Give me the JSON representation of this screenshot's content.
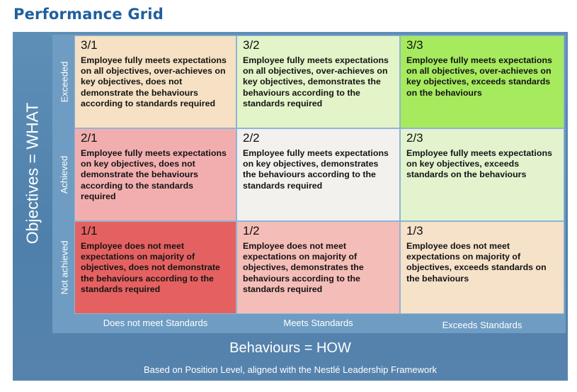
{
  "title": "Performance Grid",
  "y_axis_label": "Objectives = WHAT",
  "x_axis_label": "Behaviours = HOW",
  "footnote": "Based on Position Level, aligned with the Nestlé Leadership Framework",
  "row_labels": [
    "Exceeded",
    "Achieved",
    "Not achieved"
  ],
  "column_labels": [
    "Does not meet Standards",
    "Meets Standards",
    "Exceeds Standards"
  ],
  "cells": [
    {
      "code": "3/1",
      "text": "Employee fully meets expectations on all objectives, over-achieves on key objectives, does not demonstrate the behaviours according to standards required",
      "color": "#f6e1c4"
    },
    {
      "code": "3/2",
      "text": "Employee fully meets expectations on all objectives, over-achieves on key objectives, demonstrates the behaviours according to the standards required",
      "color": "#e3f4c8"
    },
    {
      "code": "3/3",
      "text": "Employee fully meets expectations on all objectives, over-achieves on key objectives, exceeds standards on the behaviours",
      "color": "#a6ea5e"
    },
    {
      "code": "2/1",
      "text": "Employee fully meets expectations on key objectives, does not demonstrate the behaviours according to the standards required",
      "color": "#f2aeae"
    },
    {
      "code": "2/2",
      "text": "Employee fully meets expectations on key objectives, demonstrates the behaviours according to the standards required",
      "color": "#f2f1ed"
    },
    {
      "code": "2/3",
      "text": "Employee fully meets expectations on key objectives, exceeds standards on the behaviours",
      "color": "#e2f3cd"
    },
    {
      "code": "1/1",
      "text": "Employee does not meet expectations on majority of objectives, does not demonstrate the behaviours according to the standards required",
      "color": "#e56161"
    },
    {
      "code": "1/2",
      "text": "Employee does not meet expectations on majority of objectives, demonstrates the behaviours according to the standards required",
      "color": "#f5bdb7"
    },
    {
      "code": "1/3",
      "text": "Employee does not meet expectations on majority of objectives, exceeds standards on the behaviours",
      "color": "#f6e1c9"
    }
  ]
}
